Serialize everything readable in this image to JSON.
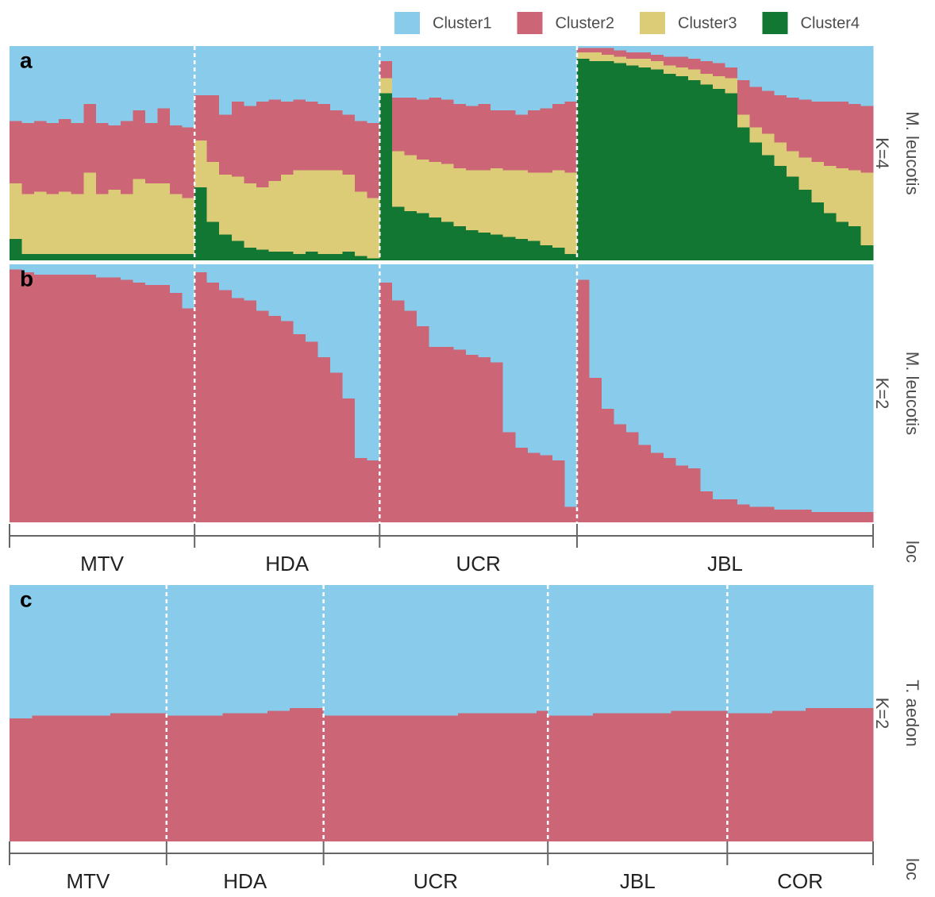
{
  "chart_data": [
    {
      "type": "stacked_bar",
      "panel": "a",
      "facet_label": "M. leucotis",
      "k_label": "K=4",
      "series": [
        {
          "name": "Cluster1",
          "color": "#89cbeb",
          "values": [
            [
              0.35,
              0.36,
              0.35,
              0.36,
              0.34,
              0.36,
              0.27,
              0.36,
              0.37,
              0.35,
              0.3,
              0.36,
              0.29,
              0.37,
              0.38
            ],
            [
              0.23,
              0.23,
              0.32,
              0.26,
              0.28,
              0.26,
              0.25,
              0.26,
              0.25,
              0.26,
              0.27,
              0.3,
              0.32,
              0.35,
              0.36
            ],
            [
              0.07,
              0.24,
              0.24,
              0.25,
              0.24,
              0.25,
              0.27,
              0.28,
              0.27,
              0.3,
              0.3,
              0.32,
              0.3,
              0.29,
              0.27,
              0.26
            ],
            [
              0.01,
              0.01,
              0.01,
              0.02,
              0.03,
              0.03,
              0.04,
              0.05,
              0.05,
              0.06,
              0.07,
              0.08,
              0.1,
              0.16,
              0.19,
              0.21,
              0.23,
              0.24,
              0.25,
              0.26,
              0.26,
              0.26,
              0.27,
              0.28
            ]
          ]
        },
        {
          "name": "Cluster2",
          "color": "#cc6677",
          "values": [
            [
              0.29,
              0.33,
              0.33,
              0.33,
              0.34,
              0.33,
              0.32,
              0.33,
              0.3,
              0.34,
              0.32,
              0.28,
              0.35,
              0.32,
              0.33
            ],
            [
              0.21,
              0.31,
              0.28,
              0.35,
              0.36,
              0.4,
              0.38,
              0.34,
              0.33,
              0.32,
              0.31,
              0.28,
              0.28,
              0.33,
              0.35
            ],
            [
              0.08,
              0.25,
              0.27,
              0.28,
              0.3,
              0.3,
              0.3,
              0.3,
              0.31,
              0.27,
              0.28,
              0.26,
              0.29,
              0.3,
              0.31,
              0.33
            ],
            [
              0.02,
              0.02,
              0.03,
              0.03,
              0.03,
              0.03,
              0.03,
              0.04,
              0.05,
              0.05,
              0.06,
              0.06,
              0.05,
              0.16,
              0.19,
              0.2,
              0.22,
              0.25,
              0.27,
              0.28,
              0.3,
              0.31,
              0.31,
              0.31
            ]
          ]
        },
        {
          "name": "Cluster3",
          "color": "#ddcc77",
          "values": [
            [
              0.26,
              0.28,
              0.29,
              0.28,
              0.29,
              0.28,
              0.38,
              0.28,
              0.3,
              0.28,
              0.35,
              0.33,
              0.33,
              0.28,
              0.26
            ],
            [
              0.22,
              0.28,
              0.28,
              0.3,
              0.3,
              0.29,
              0.33,
              0.36,
              0.39,
              0.38,
              0.39,
              0.39,
              0.36,
              0.3,
              0.28
            ],
            [
              0.07,
              0.26,
              0.26,
              0.25,
              0.26,
              0.27,
              0.27,
              0.28,
              0.29,
              0.31,
              0.31,
              0.32,
              0.32,
              0.34,
              0.36,
              0.38
            ],
            [
              0.03,
              0.04,
              0.03,
              0.03,
              0.03,
              0.04,
              0.04,
              0.04,
              0.04,
              0.05,
              0.05,
              0.06,
              0.07,
              0.06,
              0.07,
              0.1,
              0.11,
              0.12,
              0.15,
              0.19,
              0.22,
              0.25,
              0.26,
              0.34
            ]
          ]
        },
        {
          "name": "Cluster4",
          "color": "#117733",
          "values": [
            [
              0.1,
              0.03,
              0.03,
              0.03,
              0.03,
              0.03,
              0.03,
              0.03,
              0.03,
              0.03,
              0.03,
              0.03,
              0.03,
              0.03,
              0.03
            ],
            [
              0.34,
              0.18,
              0.12,
              0.09,
              0.06,
              0.05,
              0.04,
              0.04,
              0.03,
              0.04,
              0.03,
              0.03,
              0.04,
              0.02,
              0.01
            ],
            [
              0.78,
              0.25,
              0.23,
              0.22,
              0.2,
              0.18,
              0.16,
              0.14,
              0.13,
              0.12,
              0.11,
              0.1,
              0.09,
              0.07,
              0.06,
              0.03
            ],
            [
              0.94,
              0.93,
              0.93,
              0.92,
              0.91,
              0.9,
              0.89,
              0.87,
              0.86,
              0.84,
              0.82,
              0.8,
              0.78,
              0.62,
              0.55,
              0.49,
              0.44,
              0.39,
              0.33,
              0.27,
              0.22,
              0.18,
              0.16,
              0.07
            ]
          ]
        }
      ]
    },
    {
      "type": "stacked_bar",
      "panel": "b",
      "facet_label": "M. leucotis",
      "k_label": "K=2",
      "categories": [
        "MTV",
        "HDA",
        "UCR",
        "JBL"
      ],
      "locality_title": "loc",
      "series": [
        {
          "name": "Cluster1",
          "color": "#89cbeb",
          "values": [
            [
              0.02,
              0.03,
              0.04,
              0.04,
              0.04,
              0.04,
              0.04,
              0.05,
              0.05,
              0.06,
              0.07,
              0.08,
              0.08,
              0.11,
              0.17
            ],
            [
              0.03,
              0.07,
              0.1,
              0.13,
              0.14,
              0.18,
              0.2,
              0.22,
              0.27,
              0.3,
              0.36,
              0.42,
              0.52,
              0.75,
              0.76
            ],
            [
              0.07,
              0.14,
              0.18,
              0.24,
              0.32,
              0.32,
              0.33,
              0.35,
              0.36,
              0.38,
              0.65,
              0.71,
              0.73,
              0.74,
              0.76,
              0.94
            ],
            [
              0.06,
              0.44,
              0.56,
              0.62,
              0.65,
              0.7,
              0.73,
              0.75,
              0.78,
              0.79,
              0.88,
              0.91,
              0.91,
              0.93,
              0.94,
              0.94,
              0.95,
              0.95,
              0.95,
              0.96,
              0.96,
              0.96,
              0.96,
              0.96
            ]
          ]
        },
        {
          "name": "Cluster2",
          "color": "#cc6677",
          "values": [
            [
              0.98,
              0.97,
              0.96,
              0.96,
              0.96,
              0.96,
              0.96,
              0.95,
              0.95,
              0.94,
              0.93,
              0.92,
              0.92,
              0.89,
              0.83
            ],
            [
              0.97,
              0.93,
              0.9,
              0.87,
              0.86,
              0.82,
              0.8,
              0.78,
              0.73,
              0.7,
              0.64,
              0.58,
              0.48,
              0.25,
              0.24
            ],
            [
              0.93,
              0.86,
              0.82,
              0.76,
              0.68,
              0.68,
              0.67,
              0.65,
              0.64,
              0.62,
              0.35,
              0.29,
              0.27,
              0.26,
              0.24,
              0.06
            ],
            [
              0.94,
              0.56,
              0.44,
              0.38,
              0.35,
              0.3,
              0.27,
              0.25,
              0.22,
              0.21,
              0.12,
              0.09,
              0.09,
              0.07,
              0.06,
              0.06,
              0.05,
              0.05,
              0.05,
              0.04,
              0.04,
              0.04,
              0.04,
              0.04
            ]
          ]
        }
      ]
    },
    {
      "type": "stacked_bar",
      "panel": "c",
      "facet_label": "T. aedon",
      "k_label": "K=2",
      "categories": [
        "MTV",
        "HDA",
        "UCR",
        "JBL",
        "COR"
      ],
      "locality_title": "loc",
      "series": [
        {
          "name": "Cluster1",
          "color": "#89cbeb",
          "values": [
            [
              0.52,
              0.52,
              0.51,
              0.51,
              0.51,
              0.51,
              0.51,
              0.51,
              0.51,
              0.5,
              0.5,
              0.5,
              0.5,
              0.5
            ],
            [
              0.51,
              0.51,
              0.51,
              0.51,
              0.51,
              0.5,
              0.5,
              0.5,
              0.5,
              0.49,
              0.49,
              0.48,
              0.48,
              0.48
            ],
            [
              0.51,
              0.51,
              0.51,
              0.51,
              0.51,
              0.51,
              0.51,
              0.51,
              0.51,
              0.51,
              0.51,
              0.51,
              0.5,
              0.5,
              0.5,
              0.5,
              0.5,
              0.5,
              0.5,
              0.49
            ],
            [
              0.51,
              0.51,
              0.51,
              0.51,
              0.5,
              0.5,
              0.5,
              0.5,
              0.5,
              0.5,
              0.5,
              0.49,
              0.49,
              0.49,
              0.49,
              0.49
            ],
            [
              0.5,
              0.5,
              0.5,
              0.5,
              0.49,
              0.49,
              0.49,
              0.48,
              0.48,
              0.48,
              0.48,
              0.48,
              0.48
            ]
          ]
        },
        {
          "name": "Cluster2",
          "color": "#cc6677",
          "values": [
            [
              0.48,
              0.48,
              0.49,
              0.49,
              0.49,
              0.49,
              0.49,
              0.49,
              0.49,
              0.5,
              0.5,
              0.5,
              0.5,
              0.5
            ],
            [
              0.49,
              0.49,
              0.49,
              0.49,
              0.49,
              0.5,
              0.5,
              0.5,
              0.5,
              0.51,
              0.51,
              0.52,
              0.52,
              0.52
            ],
            [
              0.49,
              0.49,
              0.49,
              0.49,
              0.49,
              0.49,
              0.49,
              0.49,
              0.49,
              0.49,
              0.49,
              0.49,
              0.5,
              0.5,
              0.5,
              0.5,
              0.5,
              0.5,
              0.5,
              0.51
            ],
            [
              0.49,
              0.49,
              0.49,
              0.49,
              0.5,
              0.5,
              0.5,
              0.5,
              0.5,
              0.5,
              0.5,
              0.51,
              0.51,
              0.51,
              0.51,
              0.51
            ],
            [
              0.5,
              0.5,
              0.5,
              0.5,
              0.51,
              0.51,
              0.51,
              0.52,
              0.52,
              0.52,
              0.52,
              0.52,
              0.52
            ]
          ]
        }
      ]
    }
  ]
}
